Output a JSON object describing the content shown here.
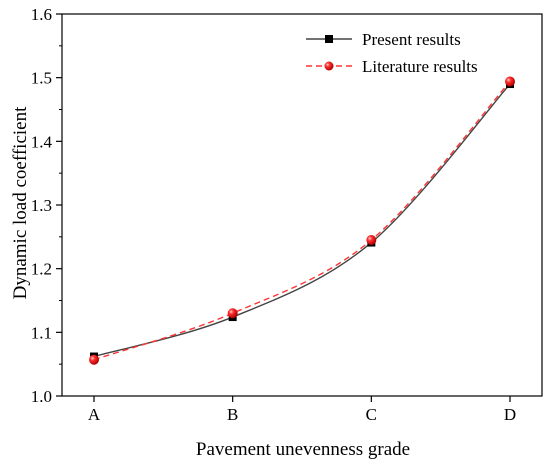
{
  "chart_data": {
    "type": "line",
    "xlabel": "Pavement unevenness grade",
    "ylabel": "Dynamic load coefficient",
    "categories": [
      "A",
      "B",
      "C",
      "D"
    ],
    "ylim": [
      1.0,
      1.6
    ],
    "yticks": [
      "1.0",
      "1.1",
      "1.2",
      "1.3",
      "1.4",
      "1.5",
      "1.6"
    ],
    "grid": false,
    "legend_position": "top-right",
    "series": [
      {
        "name": "Present results",
        "values": [
          1.062,
          1.124,
          1.241,
          1.49
        ],
        "color": "#000000",
        "line": "solid",
        "marker": "square",
        "line_color": "#444444"
      },
      {
        "name": "Literature results",
        "values": [
          1.057,
          1.13,
          1.245,
          1.494
        ],
        "color": "#ff1a1a",
        "line": "dashed",
        "marker": "circle",
        "line_color": "#ff3333"
      }
    ]
  }
}
